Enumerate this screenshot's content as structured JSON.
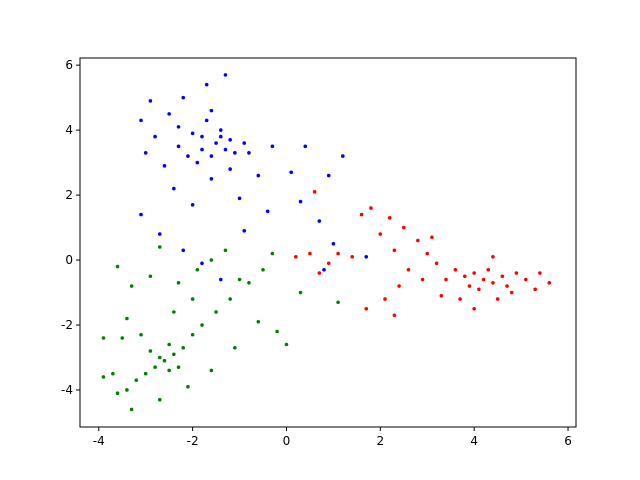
{
  "chart_data": {
    "type": "scatter",
    "xlim": [
      -4.4,
      6.17
    ],
    "ylim": [
      -5.14,
      6.22
    ],
    "xticks": [
      -4,
      -2,
      0,
      2,
      4,
      6
    ],
    "yticks": [
      -4,
      -2,
      0,
      2,
      4,
      6
    ],
    "series": [
      {
        "color": "#0000ff",
        "x": [
          -1.5,
          -1.8,
          -1.2,
          -2.0,
          -1.6,
          -1.4,
          -1.9,
          -1.1,
          -2.3,
          -1.7,
          -2.5,
          -2.9,
          -3.1,
          -2.8,
          -2.6,
          -2.4,
          -2.0,
          -1.6,
          -1.2,
          -0.8,
          -0.6,
          -0.3,
          0.1,
          0.4,
          0.9,
          1.2,
          -1.3,
          -1.7,
          -2.2,
          -3.0,
          -3.1,
          -2.7,
          -2.2,
          -1.8,
          -1.4,
          -0.9,
          -0.4,
          0.3,
          0.7,
          1.0,
          1.7,
          0.8,
          -1.0,
          -1.4,
          -1.8,
          -1.3,
          -2.1,
          -0.9,
          -1.6,
          -2.3
        ],
        "y": [
          3.6,
          3.4,
          3.7,
          3.9,
          3.2,
          4.0,
          3.0,
          3.3,
          3.5,
          4.3,
          4.5,
          4.9,
          4.3,
          3.8,
          2.9,
          2.2,
          1.7,
          2.5,
          2.8,
          3.3,
          2.6,
          3.5,
          2.7,
          3.5,
          2.6,
          3.2,
          5.7,
          5.4,
          5.0,
          3.3,
          1.4,
          0.8,
          0.3,
          -0.1,
          -0.6,
          0.9,
          1.5,
          1.8,
          1.2,
          0.5,
          0.1,
          -0.3,
          1.9,
          3.8,
          3.8,
          3.4,
          3.2,
          3.6,
          4.6,
          4.1
        ]
      },
      {
        "color": "#008000",
        "x": [
          -2.6,
          -2.4,
          -2.8,
          -2.2,
          -3.0,
          -2.5,
          -2.9,
          -3.2,
          -3.4,
          -3.3,
          -3.7,
          -3.6,
          -3.9,
          -2.0,
          -1.8,
          -1.5,
          -1.2,
          -0.8,
          -0.5,
          -0.3,
          -0.6,
          -0.2,
          0.0,
          -1.1,
          -1.6,
          -2.1,
          -2.7,
          -3.1,
          -3.4,
          -3.6,
          -3.3,
          -2.9,
          -2.7,
          -2.3,
          -1.9,
          -1.6,
          -1.3,
          -1.0,
          -2.4,
          -2.0,
          -3.5,
          -3.9,
          -2.5,
          -2.7,
          -2.3,
          0.3,
          1.1
        ],
        "y": [
          -3.1,
          -2.9,
          -3.3,
          -2.7,
          -3.5,
          -3.4,
          -2.8,
          -3.7,
          -4.0,
          -4.6,
          -3.5,
          -4.1,
          -3.6,
          -2.3,
          -2.0,
          -1.6,
          -1.2,
          -0.7,
          -0.3,
          0.2,
          -1.9,
          -2.2,
          -2.6,
          -2.7,
          -3.4,
          -3.9,
          -4.3,
          -2.3,
          -1.8,
          -0.2,
          -0.8,
          -0.5,
          0.4,
          -0.7,
          -0.3,
          0.0,
          0.3,
          -0.6,
          -1.6,
          -1.2,
          -2.4,
          -2.4,
          -2.6,
          -3.0,
          -3.3,
          -1.0,
          -1.3
        ]
      },
      {
        "color": "#ff0000",
        "x": [
          4.2,
          4.0,
          4.4,
          3.8,
          4.6,
          4.1,
          4.3,
          3.9,
          4.7,
          4.9,
          5.1,
          5.3,
          5.6,
          5.4,
          3.6,
          3.4,
          3.2,
          3.0,
          2.8,
          2.5,
          2.2,
          1.8,
          1.6,
          2.0,
          2.3,
          2.6,
          2.4,
          2.1,
          2.3,
          1.7,
          1.4,
          1.1,
          0.9,
          0.5,
          0.7,
          0.2,
          3.7,
          4.0,
          4.5,
          3.3,
          2.9,
          4.8,
          4.4,
          3.1,
          0.6
        ],
        "y": [
          -0.6,
          -0.4,
          -0.7,
          -0.5,
          -0.5,
          -0.9,
          -0.3,
          -0.8,
          -0.8,
          -0.4,
          -0.6,
          -0.9,
          -0.7,
          -0.4,
          -0.3,
          -0.6,
          -0.1,
          0.2,
          0.6,
          1.0,
          1.3,
          1.6,
          1.4,
          0.8,
          0.3,
          -0.3,
          -0.8,
          -1.2,
          -1.7,
          -1.5,
          0.1,
          0.2,
          -0.1,
          0.2,
          -0.4,
          0.1,
          -1.2,
          -1.5,
          -1.2,
          -1.1,
          -0.6,
          -1.0,
          0.1,
          0.7,
          2.1
        ]
      }
    ]
  }
}
